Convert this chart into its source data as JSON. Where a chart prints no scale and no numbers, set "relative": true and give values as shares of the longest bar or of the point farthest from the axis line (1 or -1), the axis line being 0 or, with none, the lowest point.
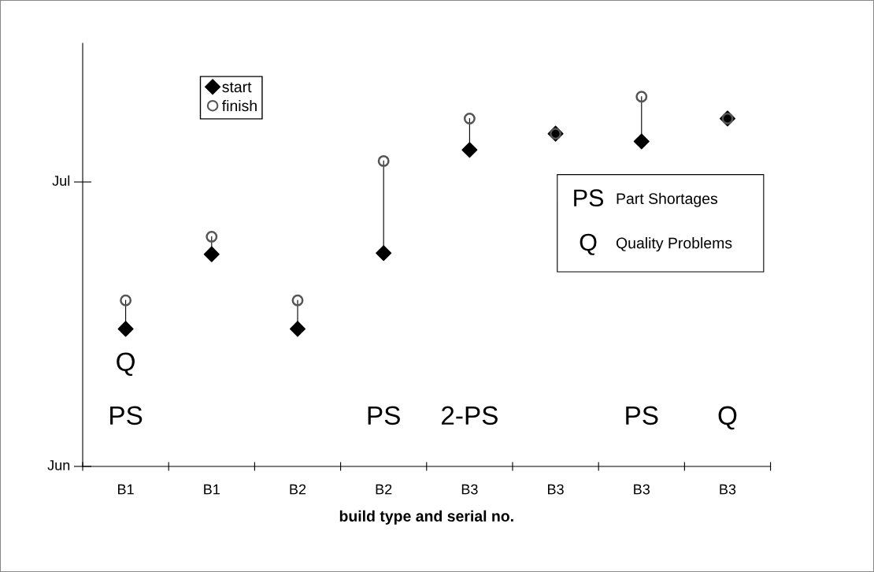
{
  "chart_data": {
    "type": "scatter",
    "xlabel": "build type and serial no.",
    "relative": true,
    "categories": [
      "B1",
      "B1",
      "B2",
      "B2",
      "B3",
      "B3",
      "B3",
      "B3"
    ],
    "series": [
      {
        "name": "start",
        "color": "#000000",
        "marker": "diamond",
        "values": [
          0.372,
          0.574,
          0.372,
          0.577,
          0.856,
          0.9,
          0.879,
          0.941
        ]
      },
      {
        "name": "finish",
        "color": "#555555",
        "marker": "circle",
        "values": [
          0.449,
          0.621,
          0.449,
          0.826,
          0.941,
          0.9,
          1,
          0.941
        ]
      }
    ],
    "grid": false,
    "legend": "top left",
    "annotations": [
      "Q",
      "PS",
      "PS",
      "2-PS",
      "PS",
      "Q",
      "PS  Part Shortages\nQ  Quality Problems",
      "Jun",
      "Jul"
    ]
  }
}
